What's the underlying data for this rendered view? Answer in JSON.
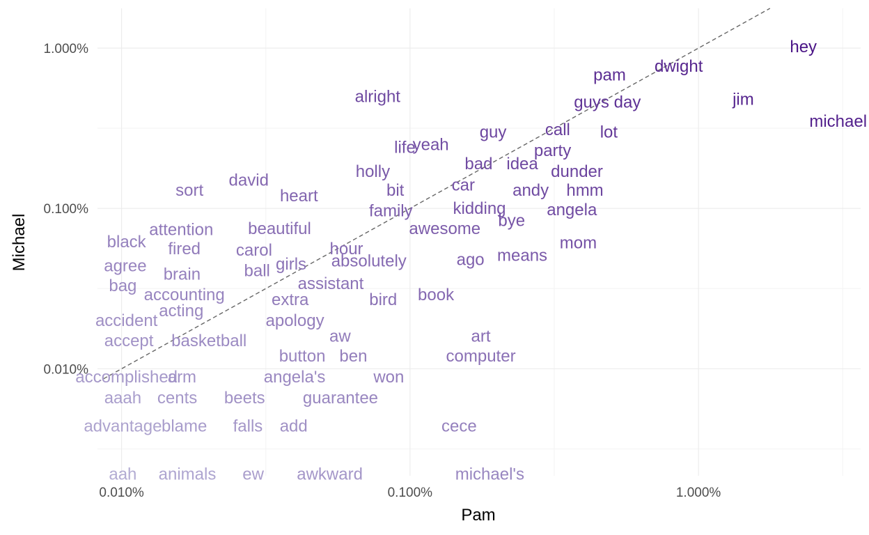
{
  "chart_data": {
    "type": "scatter",
    "x_scale": "log",
    "y_scale": "log",
    "xlabel": "Pam",
    "ylabel": "Michael",
    "x_ticks": [
      0.0001,
      0.001,
      0.01
    ],
    "y_ticks": [
      0.0001,
      0.001,
      0.01
    ],
    "x_tick_labels": [
      "0.010%",
      "0.100%",
      "1.000%"
    ],
    "y_tick_labels": [
      "0.010%",
      "0.100%",
      "1.000%"
    ],
    "xlim": [
      8.25e-05,
      0.0365
    ],
    "ylim": [
      2.15e-05,
      0.0177
    ],
    "grid": true,
    "reference_line": "y = x",
    "color_low": "#b3acd3",
    "color_high": "#4a1486",
    "points": [
      {
        "word": "hey",
        "x": 0.0231,
        "y": 0.0102
      },
      {
        "word": "michael",
        "x": 0.0305,
        "y": 0.0035
      },
      {
        "word": "jim",
        "x": 0.0143,
        "y": 0.0048
      },
      {
        "word": "dwight",
        "x": 0.00854,
        "y": 0.0077
      },
      {
        "word": "pam",
        "x": 0.00492,
        "y": 0.0068
      },
      {
        "word": "guys",
        "x": 0.00426,
        "y": 0.0046
      },
      {
        "word": "day",
        "x": 0.00567,
        "y": 0.0046
      },
      {
        "word": "lot",
        "x": 0.00489,
        "y": 0.003
      },
      {
        "word": "call",
        "x": 0.00325,
        "y": 0.0031
      },
      {
        "word": "party",
        "x": 0.00312,
        "y": 0.0023
      },
      {
        "word": "guy",
        "x": 0.00194,
        "y": 0.003
      },
      {
        "word": "alright",
        "x": 0.000772,
        "y": 0.005
      },
      {
        "word": "life",
        "x": 0.00096,
        "y": 0.0024
      },
      {
        "word": "yeah",
        "x": 0.00118,
        "y": 0.0025
      },
      {
        "word": "holly",
        "x": 0.000743,
        "y": 0.0017
      },
      {
        "word": "bad",
        "x": 0.00173,
        "y": 0.0019
      },
      {
        "word": "idea",
        "x": 0.00245,
        "y": 0.0019
      },
      {
        "word": "dunder",
        "x": 0.00379,
        "y": 0.0017
      },
      {
        "word": "car",
        "x": 0.00153,
        "y": 0.0014
      },
      {
        "word": "andy",
        "x": 0.00262,
        "y": 0.0013
      },
      {
        "word": "hmm",
        "x": 0.00404,
        "y": 0.0013
      },
      {
        "word": "david",
        "x": 0.000276,
        "y": 0.0015
      },
      {
        "word": "sort",
        "x": 0.000172,
        "y": 0.0013
      },
      {
        "word": "heart",
        "x": 0.000412,
        "y": 0.0012
      },
      {
        "word": "bit",
        "x": 0.000889,
        "y": 0.0013
      },
      {
        "word": "family",
        "x": 0.000858,
        "y": 0.00097
      },
      {
        "word": "kidding",
        "x": 0.00174,
        "y": 0.001
      },
      {
        "word": "bye",
        "x": 0.00225,
        "y": 0.00084
      },
      {
        "word": "angela",
        "x": 0.00364,
        "y": 0.00098
      },
      {
        "word": "awesome",
        "x": 0.00132,
        "y": 0.00075
      },
      {
        "word": "attention",
        "x": 0.000161,
        "y": 0.00074
      },
      {
        "word": "beautiful",
        "x": 0.000353,
        "y": 0.00075
      },
      {
        "word": "mom",
        "x": 0.00383,
        "y": 0.00061
      },
      {
        "word": "black",
        "x": 0.000104,
        "y": 0.00062
      },
      {
        "word": "fired",
        "x": 0.000165,
        "y": 0.00056
      },
      {
        "word": "carol",
        "x": 0.000288,
        "y": 0.00055
      },
      {
        "word": "hour",
        "x": 0.000602,
        "y": 0.00056
      },
      {
        "word": "means",
        "x": 0.00245,
        "y": 0.00051
      },
      {
        "word": "ago",
        "x": 0.00162,
        "y": 0.00048
      },
      {
        "word": "absolutely",
        "x": 0.00072,
        "y": 0.00047
      },
      {
        "word": "girls",
        "x": 0.000387,
        "y": 0.00045
      },
      {
        "word": "agree",
        "x": 0.000103,
        "y": 0.00044
      },
      {
        "word": "brain",
        "x": 0.000162,
        "y": 0.00039
      },
      {
        "word": "ball",
        "x": 0.000295,
        "y": 0.00041
      },
      {
        "word": "assistant",
        "x": 0.000531,
        "y": 0.00034
      },
      {
        "word": "bag",
        "x": 0.000101,
        "y": 0.00033
      },
      {
        "word": "book",
        "x": 0.00123,
        "y": 0.00029
      },
      {
        "word": "accounting",
        "x": 0.000165,
        "y": 0.00029
      },
      {
        "word": "extra",
        "x": 0.000384,
        "y": 0.00027
      },
      {
        "word": "bird",
        "x": 0.000807,
        "y": 0.00027
      },
      {
        "word": "acting",
        "x": 0.000161,
        "y": 0.00023
      },
      {
        "word": "apology",
        "x": 0.000399,
        "y": 0.0002
      },
      {
        "word": "accident",
        "x": 0.000104,
        "y": 0.0002
      },
      {
        "word": "aw",
        "x": 0.000572,
        "y": 0.00016
      },
      {
        "word": "art",
        "x": 0.00176,
        "y": 0.00016
      },
      {
        "word": "accept",
        "x": 0.000106,
        "y": 0.00015
      },
      {
        "word": "basketball",
        "x": 0.000201,
        "y": 0.00015
      },
      {
        "word": "button",
        "x": 0.000423,
        "y": 0.00012
      },
      {
        "word": "ben",
        "x": 0.000636,
        "y": 0.00012
      },
      {
        "word": "computer",
        "x": 0.00176,
        "y": 0.00012
      },
      {
        "word": "accomplished",
        "x": 0.000104,
        "y": 8.9e-05
      },
      {
        "word": "arm",
        "x": 0.000162,
        "y": 8.9e-05
      },
      {
        "word": "angela's",
        "x": 0.000398,
        "y": 8.9e-05
      },
      {
        "word": "won",
        "x": 0.000844,
        "y": 8.9e-05
      },
      {
        "word": "aaah",
        "x": 0.000101,
        "y": 6.6e-05
      },
      {
        "word": "cents",
        "x": 0.000156,
        "y": 6.6e-05
      },
      {
        "word": "beets",
        "x": 0.000267,
        "y": 6.6e-05
      },
      {
        "word": "guarantee",
        "x": 0.000574,
        "y": 6.6e-05
      },
      {
        "word": "advantage",
        "x": 0.000101,
        "y": 4.4e-05
      },
      {
        "word": "blame",
        "x": 0.000165,
        "y": 4.4e-05
      },
      {
        "word": "falls",
        "x": 0.000274,
        "y": 4.4e-05
      },
      {
        "word": "add",
        "x": 0.000395,
        "y": 4.4e-05
      },
      {
        "word": "cece",
        "x": 0.00148,
        "y": 4.4e-05
      },
      {
        "word": "aah",
        "x": 0.000101,
        "y": 2.2e-05
      },
      {
        "word": "animals",
        "x": 0.000169,
        "y": 2.2e-05
      },
      {
        "word": "ew",
        "x": 0.000286,
        "y": 2.2e-05
      },
      {
        "word": "awkward",
        "x": 0.000527,
        "y": 2.2e-05
      },
      {
        "word": "michael's",
        "x": 0.00189,
        "y": 2.2e-05
      }
    ]
  }
}
